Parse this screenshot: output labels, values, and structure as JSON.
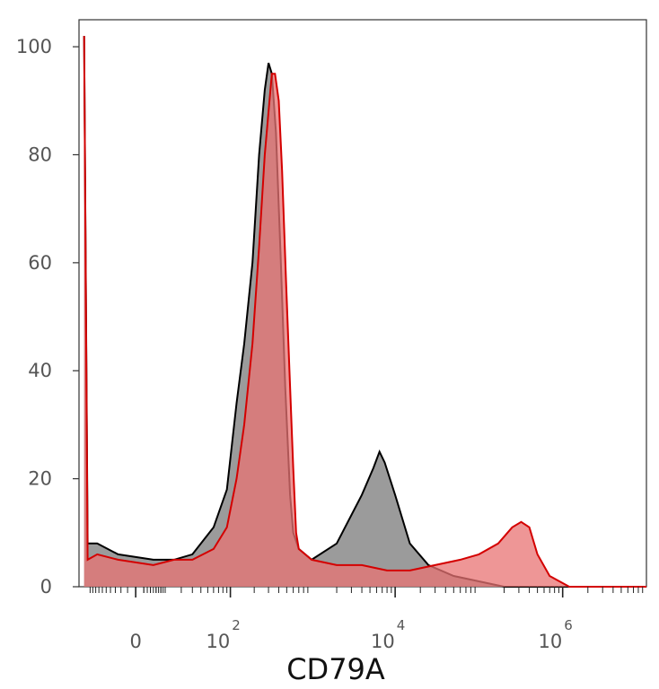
{
  "chart_data": {
    "type": "area",
    "title": "",
    "xlabel": "CD79A",
    "ylabel": "",
    "x_scale": "biexponential",
    "ylim": [
      0,
      105
    ],
    "y_ticks": [
      "0",
      "20",
      "40",
      "60",
      "80",
      "100"
    ],
    "x_ticks": [
      {
        "base": "",
        "exp": "",
        "text": "0",
        "value": 0
      },
      {
        "base": "10",
        "exp": "2",
        "value": 100
      },
      {
        "base": "10",
        "exp": "4",
        "value": 10000
      },
      {
        "base": "10",
        "exp": "6",
        "value": 1000000
      }
    ],
    "grid": false,
    "series": [
      {
        "color": "#7a7a7a",
        "stroke": "#000000",
        "points": [
          [
            -25,
            102
          ],
          [
            -22,
            8
          ],
          [
            -15,
            8
          ],
          [
            -5,
            6
          ],
          [
            5,
            5
          ],
          [
            15,
            5
          ],
          [
            30,
            6
          ],
          [
            60,
            11
          ],
          [
            90,
            18
          ],
          [
            120,
            34
          ],
          [
            150,
            45
          ],
          [
            190,
            60
          ],
          [
            230,
            80
          ],
          [
            270,
            92
          ],
          [
            300,
            97
          ],
          [
            330,
            95
          ],
          [
            370,
            84
          ],
          [
            420,
            62
          ],
          [
            480,
            37
          ],
          [
            550,
            17
          ],
          [
            600,
            10
          ],
          [
            700,
            7
          ],
          [
            1000,
            5
          ],
          [
            2000,
            8
          ],
          [
            4000,
            17
          ],
          [
            5500,
            22
          ],
          [
            6500,
            25
          ],
          [
            7500,
            23
          ],
          [
            10000,
            17
          ],
          [
            15000,
            8
          ],
          [
            25000,
            4
          ],
          [
            50000,
            2
          ],
          [
            100000,
            1
          ],
          [
            200000,
            0
          ],
          [
            1000000,
            0
          ],
          [
            10000000,
            0
          ]
        ]
      },
      {
        "color": "#e87373",
        "stroke": "#d40000",
        "points": [
          [
            -25,
            102
          ],
          [
            -22,
            5
          ],
          [
            -15,
            6
          ],
          [
            -5,
            5
          ],
          [
            5,
            4
          ],
          [
            15,
            5
          ],
          [
            30,
            5
          ],
          [
            60,
            7
          ],
          [
            90,
            11
          ],
          [
            120,
            20
          ],
          [
            150,
            30
          ],
          [
            190,
            45
          ],
          [
            230,
            63
          ],
          [
            270,
            80
          ],
          [
            300,
            88
          ],
          [
            330,
            95
          ],
          [
            360,
            95
          ],
          [
            400,
            90
          ],
          [
            440,
            77
          ],
          [
            490,
            57
          ],
          [
            540,
            40
          ],
          [
            600,
            22
          ],
          [
            650,
            10
          ],
          [
            700,
            7
          ],
          [
            1000,
            5
          ],
          [
            2000,
            4
          ],
          [
            4000,
            4
          ],
          [
            8000,
            3
          ],
          [
            15000,
            3
          ],
          [
            30000,
            4
          ],
          [
            60000,
            5
          ],
          [
            100000,
            6
          ],
          [
            170000,
            8
          ],
          [
            250000,
            11
          ],
          [
            320000,
            12
          ],
          [
            400000,
            11
          ],
          [
            500000,
            6
          ],
          [
            700000,
            2
          ],
          [
            1200000,
            0
          ],
          [
            10000000,
            0
          ]
        ]
      }
    ]
  }
}
